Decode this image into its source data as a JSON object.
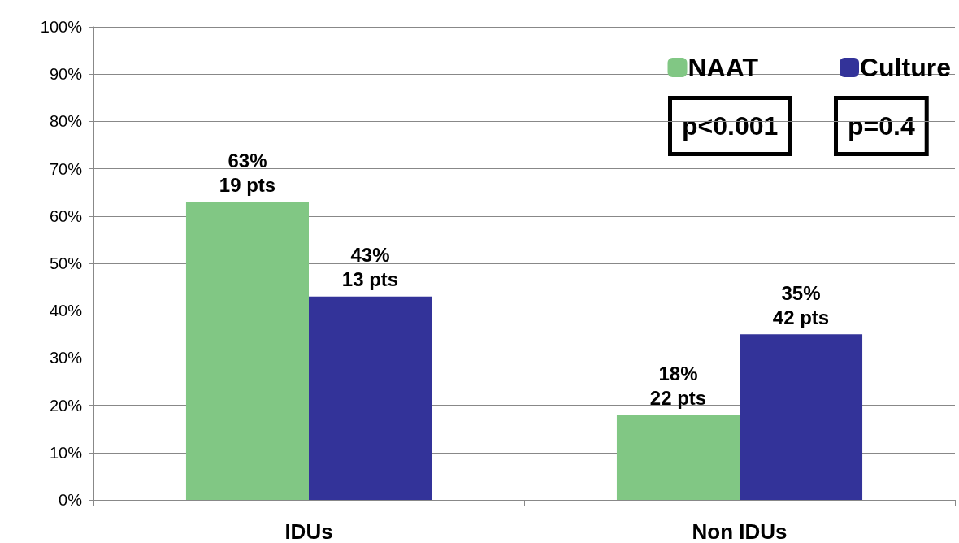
{
  "chart_data": {
    "type": "bar",
    "categories": [
      "IDUs",
      "Non IDUs"
    ],
    "series": [
      {
        "name": "NAAT",
        "color": "#81c784",
        "values": [
          63,
          18
        ],
        "value_labels": [
          "63%\n19 pts",
          "18%\n22 pts"
        ]
      },
      {
        "name": "Culture",
        "color": "#333399",
        "values": [
          43,
          35
        ],
        "value_labels": [
          "43%\n13 pts",
          "35%\n42 pts"
        ]
      }
    ],
    "ylim": [
      0,
      100
    ],
    "yticks": [
      {
        "value": 0,
        "label": "0%"
      },
      {
        "value": 10,
        "label": "10%"
      },
      {
        "value": 20,
        "label": "20%"
      },
      {
        "value": 30,
        "label": "30%"
      },
      {
        "value": 40,
        "label": "40%"
      },
      {
        "value": 50,
        "label": "50%"
      },
      {
        "value": 60,
        "label": "60%"
      },
      {
        "value": 70,
        "label": "70%"
      },
      {
        "value": 80,
        "label": "80%"
      },
      {
        "value": 90,
        "label": "90%"
      },
      {
        "value": 100,
        "label": "100%"
      }
    ],
    "annotations": [
      "p<0.001",
      "p=0.4"
    ],
    "grid": "y",
    "legend": "top right"
  }
}
